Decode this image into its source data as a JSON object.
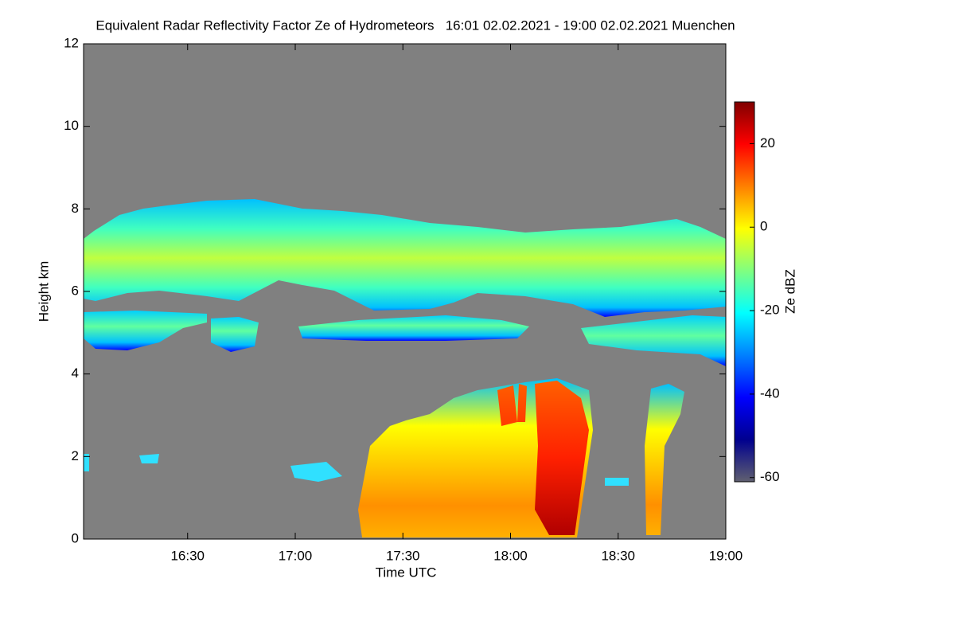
{
  "chart_data": {
    "type": "heatmap",
    "title": "Equivalent Radar Reflectivity Factor Ze of Hydrometeors   16:01 02.02.2021 - 19:00 02.02.2021 Muenchen",
    "xlabel": "Time UTC",
    "ylabel": "Height km",
    "colorbar_label": "Ze dBZ",
    "xlim": [
      961,
      1140
    ],
    "xticks": [
      {
        "value": 990,
        "label": "16:30"
      },
      {
        "value": 1020,
        "label": "17:00"
      },
      {
        "value": 1050,
        "label": "17:30"
      },
      {
        "value": 1080,
        "label": "18:00"
      },
      {
        "value": 1110,
        "label": "18:30"
      },
      {
        "value": 1140,
        "label": "19:00"
      }
    ],
    "ylim": [
      0,
      12
    ],
    "yticks": [
      0,
      2,
      4,
      6,
      8,
      10,
      12
    ],
    "zlim": [
      -61,
      30
    ],
    "zticks": [
      -60,
      -40,
      -20,
      0,
      20
    ],
    "background_color": "#808080",
    "colormap": [
      "#606070",
      "#00008f",
      "#0000ff",
      "#0080ff",
      "#00ffff",
      "#80ff80",
      "#ffff00",
      "#ff8000",
      "#ff0000",
      "#800000"
    ]
  }
}
